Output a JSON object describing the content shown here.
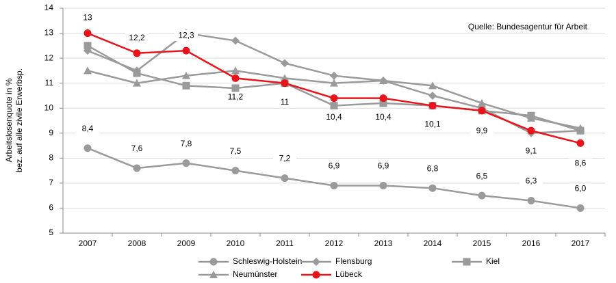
{
  "chart_data": {
    "type": "line",
    "ylabel": [
      "Arbeitslosenquote in %",
      "bez. auf alle zivile Erwerbsp."
    ],
    "annotation": "Quelle: Bundesagentur für Arbeit",
    "categories": [
      "2007",
      "2008",
      "2009",
      "2010",
      "2011",
      "2012",
      "2013",
      "2014",
      "2015",
      "2016",
      "2017"
    ],
    "ylim": [
      5,
      14
    ],
    "yticks": [
      5,
      6,
      7,
      8,
      9,
      10,
      11,
      12,
      13,
      14
    ],
    "grid": true,
    "series": [
      {
        "name": "Schleswig-Holstein",
        "color": "#9a9a9a",
        "marker": "circle",
        "values": [
          8.4,
          7.6,
          7.8,
          7.5,
          7.2,
          6.9,
          6.9,
          6.8,
          6.5,
          6.3,
          6.0
        ],
        "value_labels": [
          "8,4",
          "7,6",
          "7,8",
          "7,5",
          "7,2",
          "6,9",
          "6,9",
          "6,8",
          "6,5",
          "6,3",
          "6,0"
        ]
      },
      {
        "name": "Flensburg",
        "color": "#9a9a9a",
        "marker": "diamond",
        "values": [
          12.3,
          11.5,
          13.0,
          12.7,
          11.8,
          11.3,
          11.1,
          10.5,
          10.0,
          9.0,
          9.1
        ]
      },
      {
        "name": "Kiel",
        "color": "#9a9a9a",
        "marker": "square",
        "values": [
          12.5,
          11.4,
          10.9,
          10.8,
          11.0,
          10.1,
          10.2,
          10.1,
          9.9,
          9.7,
          9.1
        ]
      },
      {
        "name": "Neumünster",
        "color": "#9a9a9a",
        "marker": "triangle",
        "values": [
          11.5,
          11.0,
          11.3,
          11.5,
          11.2,
          11.0,
          11.1,
          10.9,
          10.2,
          9.6,
          9.2
        ]
      },
      {
        "name": "Lübeck",
        "color": "#e8141b",
        "marker": "circle",
        "values": [
          13,
          12.2,
          12.3,
          11.2,
          11,
          10.4,
          10.4,
          10.1,
          9.9,
          9.1,
          8.6
        ],
        "value_labels": [
          "13",
          "12,2",
          "12,3",
          "11,2",
          "11",
          "10,4",
          "10,4",
          "10,1",
          "9,9",
          "9,1",
          "8,6"
        ]
      }
    ]
  }
}
